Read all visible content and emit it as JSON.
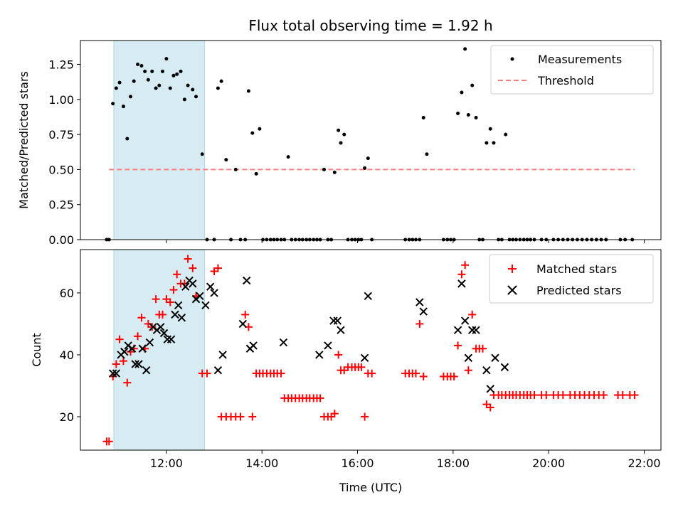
{
  "chart_data": {
    "type": "scatter",
    "title": "Flux total observing time = 1.92 h",
    "x_label": "Time (UTC)",
    "x_range_hours": [
      10.2,
      22.35
    ],
    "x_ticks": [
      {
        "value": 12,
        "label": "12:00"
      },
      {
        "value": 14,
        "label": "14:00"
      },
      {
        "value": 16,
        "label": "16:00"
      },
      {
        "value": 18,
        "label": "18:00"
      },
      {
        "value": 20,
        "label": "20:00"
      },
      {
        "value": 22,
        "label": "22:00"
      }
    ],
    "highlight_band_hours": [
      10.9,
      12.8
    ],
    "highlight_color": "#add8e6",
    "top_panel": {
      "ylabel": "Matched/Predicted stars",
      "ylim": [
        0,
        1.42
      ],
      "yticks": [
        "0.00",
        "0.25",
        "0.50",
        "0.75",
        "1.00",
        "1.25"
      ],
      "legend": {
        "placement": "upper right",
        "entries": [
          "Measurements",
          "Threshold"
        ]
      },
      "threshold": {
        "value": 0.5,
        "x_from": 10.8,
        "x_to": 21.8,
        "color": "#ff7f7f"
      },
      "measurements": [
        [
          10.75,
          0
        ],
        [
          10.8,
          0
        ],
        [
          10.88,
          0.97
        ],
        [
          10.95,
          1.08
        ],
        [
          11.02,
          1.12
        ],
        [
          11.1,
          0.95
        ],
        [
          11.18,
          0.72
        ],
        [
          11.25,
          1.02
        ],
        [
          11.32,
          1.13
        ],
        [
          11.4,
          1.25
        ],
        [
          11.48,
          1.24
        ],
        [
          11.55,
          1.2
        ],
        [
          11.62,
          1.14
        ],
        [
          11.7,
          1.2
        ],
        [
          11.78,
          1.08
        ],
        [
          11.85,
          1.1
        ],
        [
          11.92,
          1.2
        ],
        [
          12.0,
          1.29
        ],
        [
          12.08,
          1.08
        ],
        [
          12.15,
          1.17
        ],
        [
          12.22,
          1.18
        ],
        [
          12.3,
          1.2
        ],
        [
          12.38,
          1.0
        ],
        [
          12.45,
          1.1
        ],
        [
          12.55,
          1.07
        ],
        [
          12.62,
          1.02
        ],
        [
          12.75,
          0.61
        ],
        [
          12.85,
          0
        ],
        [
          13.0,
          0
        ],
        [
          13.08,
          1.08
        ],
        [
          13.15,
          1.13
        ],
        [
          13.25,
          0.57
        ],
        [
          13.35,
          0
        ],
        [
          13.45,
          0.5
        ],
        [
          13.55,
          0
        ],
        [
          13.65,
          0
        ],
        [
          13.72,
          1.06
        ],
        [
          13.8,
          0.76
        ],
        [
          13.88,
          0.47
        ],
        [
          13.95,
          0.79
        ],
        [
          14.02,
          0
        ],
        [
          14.1,
          0
        ],
        [
          14.18,
          0
        ],
        [
          14.25,
          0
        ],
        [
          14.32,
          0
        ],
        [
          14.4,
          0
        ],
        [
          14.47,
          0
        ],
        [
          14.55,
          0.59
        ],
        [
          14.62,
          0
        ],
        [
          14.7,
          0
        ],
        [
          14.78,
          0
        ],
        [
          14.85,
          0
        ],
        [
          14.93,
          0
        ],
        [
          15.0,
          0
        ],
        [
          15.08,
          0
        ],
        [
          15.15,
          0
        ],
        [
          15.22,
          0
        ],
        [
          15.3,
          0.5
        ],
        [
          15.38,
          0
        ],
        [
          15.45,
          0
        ],
        [
          15.52,
          0.48
        ],
        [
          15.6,
          0.78
        ],
        [
          15.65,
          0.69
        ],
        [
          15.72,
          0.75
        ],
        [
          15.8,
          0
        ],
        [
          15.88,
          0
        ],
        [
          15.95,
          0
        ],
        [
          16.02,
          0
        ],
        [
          16.08,
          0
        ],
        [
          16.15,
          0.51
        ],
        [
          16.22,
          0.58
        ],
        [
          16.3,
          0
        ],
        [
          17.0,
          0
        ],
        [
          17.08,
          0
        ],
        [
          17.15,
          0
        ],
        [
          17.22,
          0
        ],
        [
          17.3,
          0
        ],
        [
          17.38,
          0.87
        ],
        [
          17.45,
          0.61
        ],
        [
          17.8,
          0
        ],
        [
          17.88,
          0
        ],
        [
          17.95,
          0
        ],
        [
          18.02,
          0
        ],
        [
          18.1,
          0.9
        ],
        [
          18.18,
          1.05
        ],
        [
          18.25,
          1.36
        ],
        [
          18.32,
          0.89
        ],
        [
          18.4,
          1.1
        ],
        [
          18.48,
          0.87
        ],
        [
          18.55,
          0
        ],
        [
          18.62,
          0
        ],
        [
          18.7,
          0.69
        ],
        [
          18.78,
          0.79
        ],
        [
          18.85,
          0.69
        ],
        [
          18.95,
          0
        ],
        [
          19.02,
          0
        ],
        [
          19.1,
          0.75
        ],
        [
          19.18,
          0
        ],
        [
          19.25,
          0
        ],
        [
          19.32,
          0
        ],
        [
          19.4,
          0
        ],
        [
          19.48,
          0
        ],
        [
          19.55,
          0
        ],
        [
          19.62,
          0
        ],
        [
          19.7,
          0
        ],
        [
          19.85,
          0
        ],
        [
          19.95,
          0
        ],
        [
          20.1,
          0
        ],
        [
          20.2,
          0
        ],
        [
          20.3,
          0
        ],
        [
          20.4,
          0
        ],
        [
          20.5,
          0
        ],
        [
          20.6,
          0
        ],
        [
          20.7,
          0
        ],
        [
          20.8,
          0
        ],
        [
          20.9,
          0
        ],
        [
          21.0,
          0
        ],
        [
          21.1,
          0
        ],
        [
          21.2,
          0
        ],
        [
          21.5,
          0
        ],
        [
          21.6,
          0
        ],
        [
          21.75,
          0
        ]
      ]
    },
    "bottom_panel": {
      "ylabel": "Count",
      "ylim": [
        9.2,
        74
      ],
      "yticks": [
        "20",
        "40",
        "60"
      ],
      "legend": {
        "placement": "upper right",
        "entries": [
          "Matched stars",
          "Predicted stars"
        ]
      },
      "matched_color": "#ff0000",
      "predicted_color": "#000000",
      "matched": [
        [
          10.75,
          12
        ],
        [
          10.8,
          12
        ],
        [
          10.88,
          33
        ],
        [
          10.95,
          37
        ],
        [
          11.02,
          45
        ],
        [
          11.1,
          38
        ],
        [
          11.18,
          31
        ],
        [
          11.25,
          41
        ],
        [
          11.32,
          42
        ],
        [
          11.4,
          46
        ],
        [
          11.48,
          52
        ],
        [
          11.55,
          42
        ],
        [
          11.62,
          50
        ],
        [
          11.7,
          49
        ],
        [
          11.78,
          58
        ],
        [
          11.85,
          53
        ],
        [
          11.92,
          53
        ],
        [
          12.0,
          58
        ],
        [
          12.08,
          57
        ],
        [
          12.15,
          61
        ],
        [
          12.22,
          66
        ],
        [
          12.3,
          63
        ],
        [
          12.38,
          63
        ],
        [
          12.45,
          71
        ],
        [
          12.55,
          68
        ],
        [
          12.62,
          59
        ],
        [
          12.75,
          34
        ],
        [
          12.85,
          34
        ],
        [
          13.0,
          67
        ],
        [
          13.08,
          68
        ],
        [
          13.15,
          20
        ],
        [
          13.25,
          20
        ],
        [
          13.35,
          20
        ],
        [
          13.45,
          20
        ],
        [
          13.55,
          20
        ],
        [
          13.65,
          53
        ],
        [
          13.72,
          49
        ],
        [
          13.8,
          20
        ],
        [
          13.88,
          34
        ],
        [
          13.95,
          34
        ],
        [
          14.02,
          34
        ],
        [
          14.1,
          34
        ],
        [
          14.18,
          34
        ],
        [
          14.25,
          34
        ],
        [
          14.32,
          34
        ],
        [
          14.4,
          34
        ],
        [
          14.47,
          26
        ],
        [
          14.55,
          26
        ],
        [
          14.62,
          26
        ],
        [
          14.7,
          26
        ],
        [
          14.78,
          26
        ],
        [
          14.85,
          26
        ],
        [
          14.93,
          26
        ],
        [
          15.0,
          26
        ],
        [
          15.08,
          26
        ],
        [
          15.15,
          26
        ],
        [
          15.22,
          26
        ],
        [
          15.3,
          20
        ],
        [
          15.38,
          20
        ],
        [
          15.45,
          20
        ],
        [
          15.52,
          21
        ],
        [
          15.6,
          40
        ],
        [
          15.65,
          35
        ],
        [
          15.72,
          35
        ],
        [
          15.8,
          36
        ],
        [
          15.88,
          36
        ],
        [
          15.95,
          36
        ],
        [
          16.02,
          36
        ],
        [
          16.08,
          36
        ],
        [
          16.15,
          20
        ],
        [
          16.22,
          34
        ],
        [
          16.3,
          34
        ],
        [
          17.0,
          34
        ],
        [
          17.08,
          34
        ],
        [
          17.15,
          34
        ],
        [
          17.22,
          34
        ],
        [
          17.3,
          50
        ],
        [
          17.38,
          33
        ],
        [
          17.8,
          33
        ],
        [
          17.88,
          33
        ],
        [
          17.95,
          33
        ],
        [
          18.02,
          33
        ],
        [
          18.1,
          43
        ],
        [
          18.18,
          66
        ],
        [
          18.25,
          69
        ],
        [
          18.32,
          35
        ],
        [
          18.4,
          53
        ],
        [
          18.48,
          42
        ],
        [
          18.55,
          42
        ],
        [
          18.62,
          42
        ],
        [
          18.7,
          24
        ],
        [
          18.78,
          23
        ],
        [
          18.85,
          27
        ],
        [
          18.95,
          27
        ],
        [
          19.02,
          27
        ],
        [
          19.1,
          27
        ],
        [
          19.18,
          27
        ],
        [
          19.25,
          27
        ],
        [
          19.32,
          27
        ],
        [
          19.4,
          27
        ],
        [
          19.48,
          27
        ],
        [
          19.55,
          27
        ],
        [
          19.62,
          27
        ],
        [
          19.7,
          27
        ],
        [
          19.85,
          27
        ],
        [
          19.95,
          27
        ],
        [
          20.1,
          27
        ],
        [
          20.2,
          27
        ],
        [
          20.3,
          27
        ],
        [
          20.45,
          27
        ],
        [
          20.55,
          27
        ],
        [
          20.65,
          27
        ],
        [
          20.75,
          27
        ],
        [
          20.85,
          27
        ],
        [
          20.95,
          27
        ],
        [
          21.05,
          27
        ],
        [
          21.15,
          27
        ],
        [
          21.45,
          27
        ],
        [
          21.55,
          27
        ],
        [
          21.7,
          27
        ],
        [
          21.8,
          27
        ]
      ],
      "predicted": [
        [
          10.88,
          34
        ],
        [
          10.95,
          34
        ],
        [
          11.05,
          40
        ],
        [
          11.12,
          41
        ],
        [
          11.2,
          43
        ],
        [
          11.28,
          42
        ],
        [
          11.35,
          37
        ],
        [
          11.42,
          37
        ],
        [
          11.5,
          42
        ],
        [
          11.58,
          35
        ],
        [
          11.65,
          44
        ],
        [
          11.72,
          49
        ],
        [
          11.8,
          48
        ],
        [
          11.88,
          49
        ],
        [
          11.95,
          47
        ],
        [
          12.02,
          45
        ],
        [
          12.1,
          45
        ],
        [
          12.18,
          53
        ],
        [
          12.25,
          56
        ],
        [
          12.32,
          52
        ],
        [
          12.4,
          62
        ],
        [
          12.48,
          64
        ],
        [
          12.55,
          63
        ],
        [
          12.62,
          58
        ],
        [
          12.7,
          59
        ],
        [
          12.82,
          56
        ],
        [
          12.92,
          62
        ],
        [
          13.0,
          60
        ],
        [
          13.08,
          35
        ],
        [
          13.18,
          40
        ],
        [
          13.6,
          50
        ],
        [
          13.68,
          64
        ],
        [
          13.75,
          42
        ],
        [
          13.82,
          43
        ],
        [
          14.45,
          44
        ],
        [
          15.2,
          40
        ],
        [
          15.38,
          43
        ],
        [
          15.5,
          51
        ],
        [
          15.58,
          51
        ],
        [
          15.65,
          48
        ],
        [
          16.15,
          39
        ],
        [
          16.22,
          59
        ],
        [
          17.3,
          57
        ],
        [
          17.38,
          54
        ],
        [
          18.1,
          48
        ],
        [
          18.18,
          63
        ],
        [
          18.25,
          51
        ],
        [
          18.32,
          39
        ],
        [
          18.4,
          48
        ],
        [
          18.48,
          48
        ],
        [
          18.7,
          35
        ],
        [
          18.78,
          29
        ],
        [
          18.88,
          39
        ],
        [
          19.08,
          36
        ]
      ]
    }
  }
}
